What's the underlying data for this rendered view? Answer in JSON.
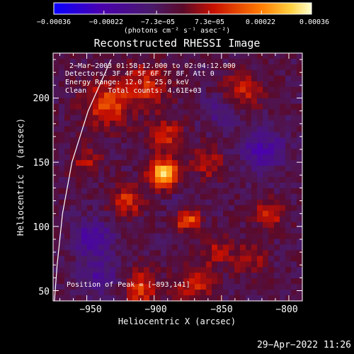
{
  "chart_data": {
    "type": "heatmap",
    "title": "Reconstructed RHESSI Image",
    "xlabel": "Heliocentric X (arcsec)",
    "ylabel": "Heliocentric Y (arcsec)",
    "xlim": [
      -975,
      -790
    ],
    "ylim": [
      42,
      235
    ],
    "x_ticks": [
      -950,
      -900,
      -850,
      -800
    ],
    "y_ticks": [
      50,
      100,
      150,
      200
    ],
    "x_tick_labels": [
      "−950",
      "−900",
      "−850",
      "−800"
    ],
    "y_tick_labels": [
      "50",
      "100",
      "150",
      "200"
    ],
    "colorbar": {
      "range": [
        -0.00036,
        0.00036
      ],
      "ticks": [
        -0.00036,
        -0.00022,
        -7.3e-05,
        7.3e-05,
        0.00022,
        0.00036
      ],
      "tick_labels": [
        "−0.00036",
        "−0.00022",
        "−7.3e−05",
        "7.3e−05",
        "0.00022",
        "0.00036"
      ],
      "unit_label": "(photons cm⁻² s⁻¹ asec⁻²)"
    },
    "annotations": {
      "time_range": "2−Mar−2003 01:58:12.000 to 02:04:12.000",
      "detectors": "Detectors: 3F 4F 5F 6F 7F 8F, Att 0",
      "energy": "Energy Range: 12.0 − 25.0 keV",
      "clean": "Clean     Total counts: 4.61E+03",
      "peak": "Position of Peak = [−893,141]"
    },
    "peak": {
      "x": -893,
      "y": 141,
      "value": 0.00036
    },
    "sources": [
      {
        "x": -893,
        "y": 141,
        "value": 0.00036,
        "sigma": 7
      },
      {
        "x": -875,
        "y": 105,
        "value": 0.00022,
        "sigma": 6
      },
      {
        "x": -892,
        "y": 170,
        "value": 0.00014,
        "sigma": 9
      },
      {
        "x": -920,
        "y": 120,
        "value": 0.00016,
        "sigma": 8
      },
      {
        "x": -935,
        "y": 195,
        "value": 0.00018,
        "sigma": 12
      },
      {
        "x": -905,
        "y": 210,
        "value": 0.00014,
        "sigma": 12
      },
      {
        "x": -860,
        "y": 150,
        "value": 0.00013,
        "sigma": 8
      },
      {
        "x": -815,
        "y": 110,
        "value": 0.00016,
        "sigma": 7
      },
      {
        "x": -870,
        "y": 55,
        "value": 0.00015,
        "sigma": 9
      },
      {
        "x": -910,
        "y": 52,
        "value": 0.00017,
        "sigma": 9
      },
      {
        "x": -835,
        "y": 205,
        "value": 0.00013,
        "sigma": 10
      },
      {
        "x": -855,
        "y": 80,
        "value": 0.0001,
        "sigma": 8
      },
      {
        "x": -950,
        "y": 150,
        "value": 0.0001,
        "sigma": 8
      },
      {
        "x": -830,
        "y": 75,
        "value": 0.00012,
        "sigma": 8
      },
      {
        "x": -945,
        "y": 90,
        "value": -0.00016,
        "sigma": 10
      },
      {
        "x": -880,
        "y": 120,
        "value": -6e-05,
        "sigma": 6
      },
      {
        "x": -820,
        "y": 160,
        "value": -0.00014,
        "sigma": 12
      },
      {
        "x": -940,
        "y": 60,
        "value": -0.00012,
        "sigma": 10
      },
      {
        "x": -850,
        "y": 190,
        "value": -0.0001,
        "sigma": 9
      }
    ],
    "limb_line": [
      [
        -932,
        230
      ],
      [
        -949,
        190
      ],
      [
        -961,
        150
      ],
      [
        -968,
        110
      ],
      [
        -972,
        70
      ],
      [
        -974,
        42
      ]
    ],
    "grid": false
  },
  "footer": {
    "date": "29−Apr−2022 11:26"
  }
}
